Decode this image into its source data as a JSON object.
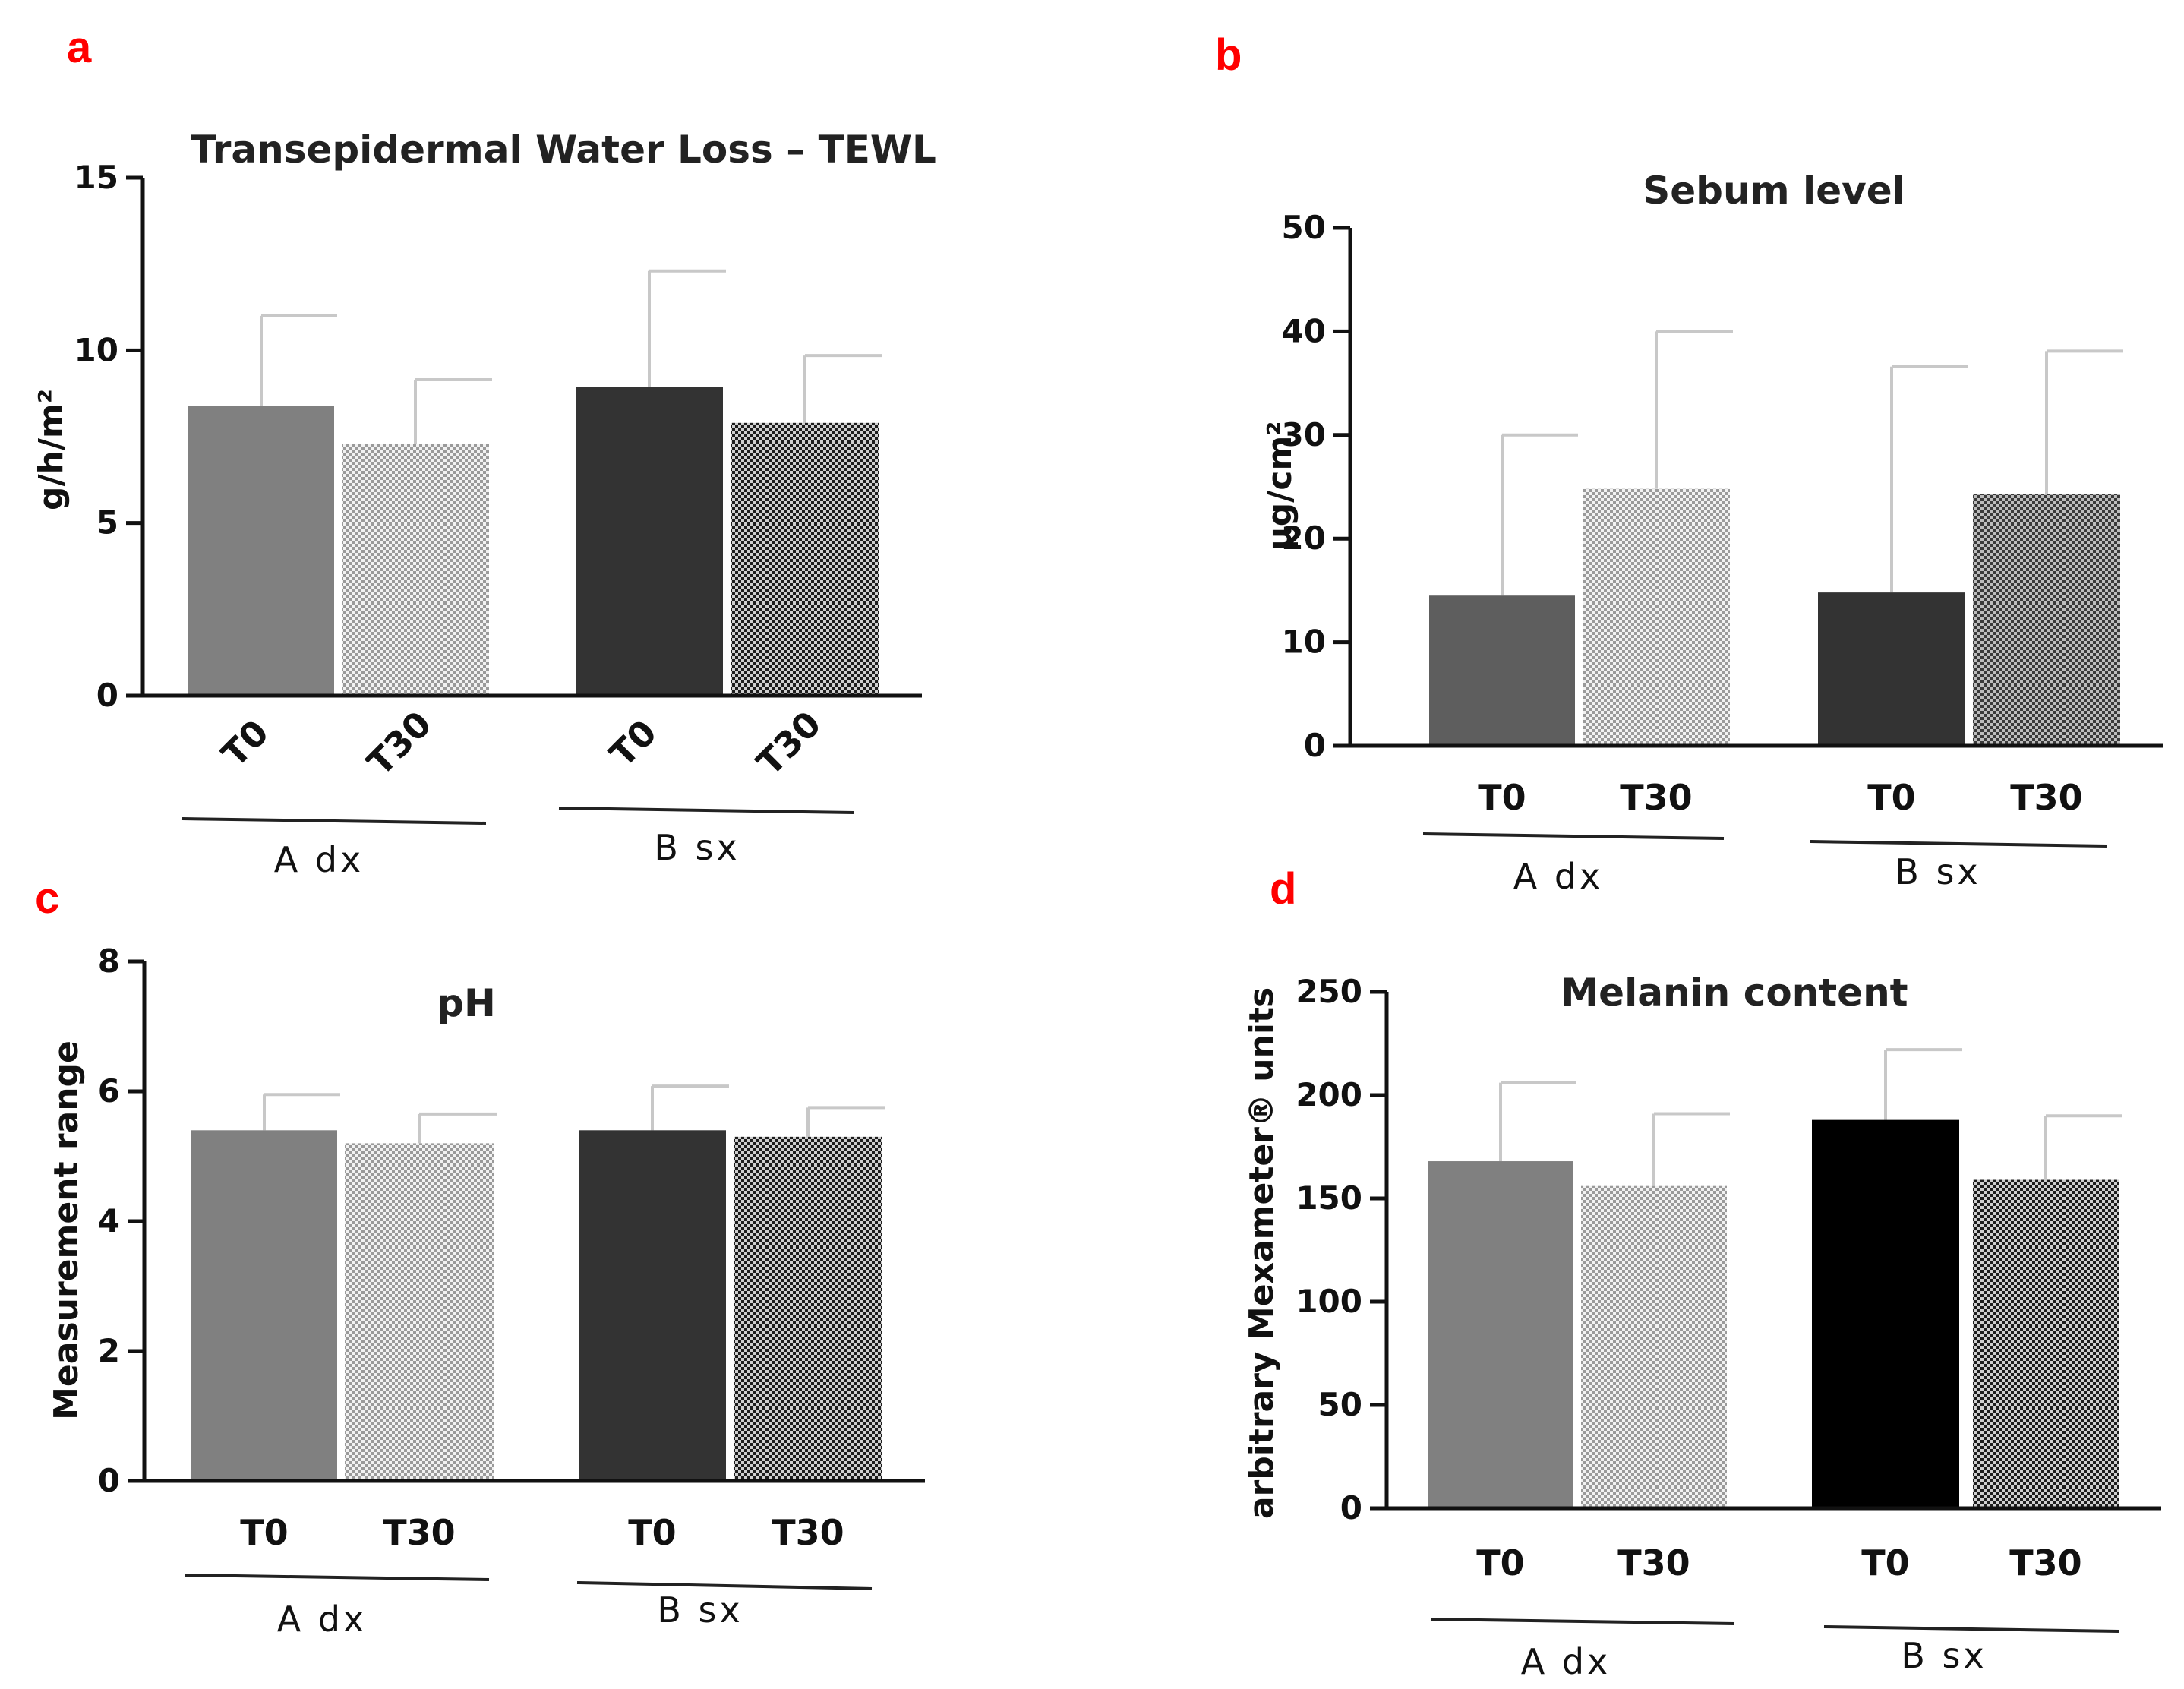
{
  "colors": {
    "panel_letter": "#ff0000",
    "axis": "#111111",
    "error_bar": "#c8c8c8",
    "group_line": "#222222"
  },
  "chart_data": [
    {
      "panel": "a",
      "type": "bar",
      "title": "Transepidermal Water Loss – TEWL",
      "ylabel": "g/h/m²",
      "ylim": [
        0,
        15
      ],
      "yticks": [
        "0",
        "5",
        "10",
        "15"
      ],
      "categories": [
        "T0",
        "T30",
        "T0",
        "T30"
      ],
      "groups": [
        "A dx",
        "B sx"
      ],
      "values": [
        8.4,
        7.3,
        8.95,
        7.9
      ],
      "errors": [
        2.6,
        1.85,
        3.35,
        1.95
      ],
      "fills": [
        "gray",
        "light-check",
        "dark",
        "dark-check"
      ],
      "rotated_ticks": true
    },
    {
      "panel": "b",
      "type": "bar",
      "title": "Sebum level",
      "ylabel": "μg/cm²",
      "ylim": [
        0,
        50
      ],
      "yticks": [
        "0",
        "10",
        "20",
        "30",
        "40",
        "50"
      ],
      "categories": [
        "T0",
        "T30",
        "T0",
        "T30"
      ],
      "groups": [
        "A dx",
        "B sx"
      ],
      "values": [
        14.5,
        24.8,
        14.8,
        24.3
      ],
      "errors": [
        15.5,
        15.2,
        21.8,
        13.8
      ],
      "fills": [
        "dark-gray",
        "light-check",
        "dark",
        "mid-check"
      ],
      "rotated_ticks": false
    },
    {
      "panel": "c",
      "type": "bar",
      "title": "pH",
      "ylabel": "Measurement range",
      "ylim": [
        0,
        8
      ],
      "yticks": [
        "0",
        "2",
        "4",
        "6",
        "8"
      ],
      "categories": [
        "T0",
        "T30",
        "T0",
        "T30"
      ],
      "groups": [
        "A dx",
        "B sx"
      ],
      "values": [
        5.4,
        5.2,
        5.4,
        5.3
      ],
      "errors": [
        0.55,
        0.45,
        0.68,
        0.45
      ],
      "fills": [
        "gray",
        "light-check",
        "dark",
        "dark-check"
      ],
      "rotated_ticks": false
    },
    {
      "panel": "d",
      "type": "bar",
      "title": "Melanin content",
      "ylabel": "arbitrary Mexameter® units",
      "ylim": [
        0,
        250
      ],
      "yticks": [
        "0",
        "50",
        "100",
        "150",
        "200",
        "250"
      ],
      "categories": [
        "T0",
        "T30",
        "T0",
        "T30"
      ],
      "groups": [
        "A dx",
        "B sx"
      ],
      "values": [
        168,
        156,
        188,
        159
      ],
      "errors": [
        38,
        35,
        34,
        31
      ],
      "fills": [
        "gray",
        "light-check",
        "black",
        "dark-check"
      ],
      "rotated_ticks": false
    }
  ]
}
